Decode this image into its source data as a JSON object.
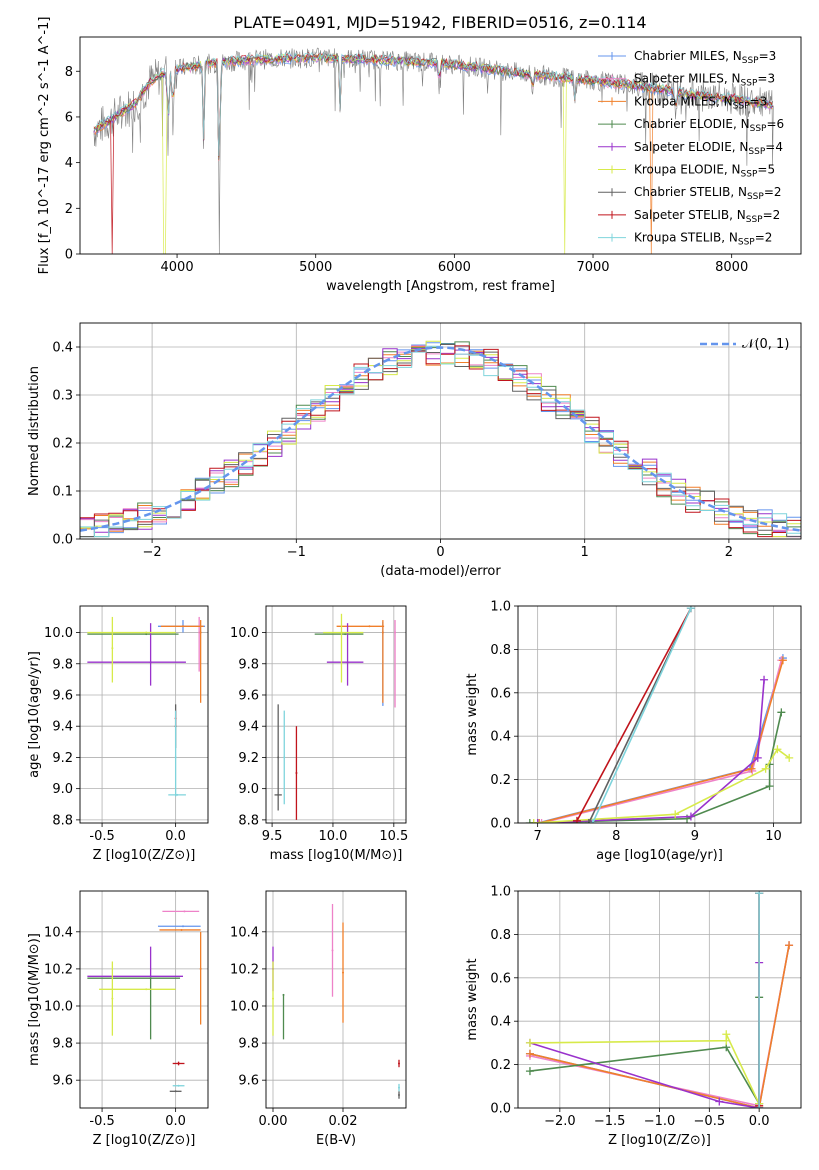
{
  "figure": {
    "title": "PLATE=0491, MJD=51942, FIBERID=0516, z=0.114"
  },
  "series_styles": [
    {
      "name": "Chabrier MILES",
      "nssp": "3",
      "color": "#6495ed"
    },
    {
      "name": "Salpeter MILES",
      "nssp": "3",
      "color": "#ee82c8"
    },
    {
      "name": "Kroupa MILES",
      "nssp": "3",
      "color": "#f07f2a"
    },
    {
      "name": "Chabrier ELODIE",
      "nssp": "6",
      "color": "#4f8a4f"
    },
    {
      "name": "Salpeter ELODIE",
      "nssp": "4",
      "color": "#9932cc"
    },
    {
      "name": "Kroupa ELODIE",
      "nssp": "5",
      "color": "#d7ea4a"
    },
    {
      "name": "Chabrier STELIB",
      "nssp": "2",
      "color": "#606060"
    },
    {
      "name": "Salpeter STELIB",
      "nssp": "2",
      "color": "#c0141c"
    },
    {
      "name": "Kroupa STELIB",
      "nssp": "2",
      "color": "#7fd4dc"
    }
  ],
  "chart_data": [
    {
      "id": "spectrum",
      "type": "line",
      "xlabel": "wavelength [Angstrom, rest frame]",
      "ylabel": "Flux [f_λ 10^-17 erg cm^-2 s^-1 A^-1]",
      "xlim": [
        3300,
        8500
      ],
      "ylim": [
        0,
        9.5
      ],
      "xticks": [
        4000,
        5000,
        6000,
        7000,
        8000
      ],
      "yticks": [
        0,
        2,
        4,
        6,
        8
      ],
      "grid": false,
      "legend": "upper-right",
      "observed_color": "#808080",
      "continuum_x": [
        3400,
        3600,
        3700,
        3800,
        3900,
        4000,
        4200,
        4500,
        5000,
        5500,
        6000,
        6500,
        7000,
        7500,
        7800,
        8000,
        8200,
        8300
      ],
      "continuum_y": [
        5.4,
        6.2,
        6.6,
        7.5,
        7.9,
        8.1,
        8.3,
        8.5,
        8.6,
        8.5,
        8.3,
        7.9,
        7.6,
        7.2,
        6.9,
        6.8,
        6.6,
        6.5
      ],
      "dips": [
        {
          "x": 4305,
          "y": 0.0
        },
        {
          "x": 4190,
          "y": 4.6
        },
        {
          "x": 3935,
          "y": 4.3
        },
        {
          "x": 3970,
          "y": 5.2
        },
        {
          "x": 5175,
          "y": 6.2
        },
        {
          "x": 5890,
          "y": 7.0
        },
        {
          "x": 6563,
          "y": 6.9
        },
        {
          "x": 6870,
          "y": 6.6
        },
        {
          "x": 7595,
          "y": 5.9
        }
      ],
      "model_cutoffs": [
        {
          "series": 7,
          "x": 3535
        },
        {
          "series": 5,
          "x": 3910
        },
        {
          "series": 5,
          "x": 6800
        },
        {
          "series": 2,
          "x": 7420
        }
      ]
    },
    {
      "id": "residuals",
      "type": "histogram",
      "xlabel": "(data-model)/error",
      "ylabel": "Normed distribution",
      "xlim": [
        -2.5,
        2.5
      ],
      "ylim": [
        0,
        0.45
      ],
      "xticks": [
        -2,
        -1,
        0,
        1,
        2
      ],
      "yticks": [
        0,
        0.1,
        0.2,
        0.3,
        0.4
      ],
      "grid": true,
      "bin_width": 0.1,
      "reference_curve": {
        "label": "𝒩(0, 1)",
        "color": "#6495ed"
      },
      "legend": "upper-right"
    },
    {
      "id": "age-vs-z",
      "type": "errorbar",
      "xlabel": "Z [log10(Z/Z⊙)]",
      "ylabel": "age [log10(age/yr)]",
      "xlim": [
        -0.65,
        0.22
      ],
      "ylim": [
        8.78,
        10.17
      ],
      "xticks": [
        -0.5,
        0.0
      ],
      "yticks": [
        8.8,
        9.0,
        9.2,
        9.4,
        9.6,
        9.8,
        10.0
      ],
      "grid": true,
      "points": [
        {
          "series": 0,
          "x": 0.05,
          "xerr": [
            0.17,
            0.15
          ],
          "y": 10.04,
          "yerr": [
            0.04,
            0.04
          ]
        },
        {
          "series": 1,
          "x": 0.16,
          "xerr": [
            0.0,
            0.0
          ],
          "y": 10.0,
          "yerr": [
            0.25,
            0.1
          ]
        },
        {
          "series": 2,
          "x": 0.17,
          "xerr": [
            0.0,
            0.0
          ],
          "y": 10.0,
          "yerr": [
            0.45,
            0.08
          ]
        },
        {
          "series": 2,
          "x": 0.05,
          "xerr": [
            0.15,
            0.14
          ],
          "y": 10.04,
          "yerr": [
            0.0,
            0.0
          ]
        },
        {
          "series": 3,
          "x": -0.2,
          "xerr": [
            0.4,
            0.22
          ],
          "y": 9.99,
          "yerr": [
            0.0,
            0.0
          ]
        },
        {
          "series": 4,
          "x": -0.17,
          "xerr": [
            0.43,
            0.24
          ],
          "y": 9.81,
          "yerr": [
            0.15,
            0.25
          ]
        },
        {
          "series": 5,
          "x": -0.43,
          "xerr": [
            0.0,
            0.0
          ],
          "y": 9.9,
          "yerr": [
            0.22,
            0.2
          ]
        },
        {
          "series": 5,
          "x": -0.2,
          "xerr": [
            0.4,
            0.2
          ],
          "y": 10.0,
          "yerr": [
            0.0,
            0.0
          ]
        },
        {
          "series": 6,
          "x": 0.0,
          "xerr": [
            0.0,
            0.0
          ],
          "y": 9.4,
          "yerr": [
            0.14,
            0.14
          ]
        },
        {
          "series": 7,
          "x": 0.0,
          "xerr": [
            0.0,
            0.0
          ],
          "y": 9.45,
          "yerr": [
            0.05,
            0.05
          ]
        },
        {
          "series": 8,
          "x": 0.01,
          "xerr": [
            0.06,
            0.06
          ],
          "y": 8.96,
          "yerr": [
            0.0,
            0.0
          ]
        },
        {
          "series": 8,
          "x": 0.0,
          "xerr": [
            0.0,
            0.0
          ],
          "y": 9.2,
          "yerr": [
            0.25,
            0.3
          ]
        }
      ]
    },
    {
      "id": "age-vs-mass",
      "type": "errorbar",
      "xlabel": "mass [log10(M/M⊙)]",
      "ylabel": "",
      "xlim": [
        9.45,
        10.6
      ],
      "ylim": [
        8.78,
        10.17
      ],
      "xticks": [
        9.5,
        10.0,
        10.5
      ],
      "yticks": [
        8.8,
        9.0,
        9.2,
        9.4,
        9.6,
        9.8,
        10.0
      ],
      "grid": true,
      "points": [
        {
          "series": 0,
          "x": 10.41,
          "xerr": [
            0.0,
            0.0
          ],
          "y": 10.0,
          "yerr": [
            0.47,
            0.07
          ]
        },
        {
          "series": 1,
          "x": 10.51,
          "xerr": [
            0.0,
            0.0
          ],
          "y": 10.0,
          "yerr": [
            0.48,
            0.08
          ]
        },
        {
          "series": 2,
          "x": 10.41,
          "xerr": [
            0.0,
            0.0
          ],
          "y": 10.0,
          "yerr": [
            0.45,
            0.08
          ]
        },
        {
          "series": 2,
          "x": 10.3,
          "xerr": [
            0.27,
            0.12
          ],
          "y": 10.04,
          "yerr": [
            0.0,
            0.0
          ]
        },
        {
          "series": 3,
          "x": 10.1,
          "xerr": [
            0.25,
            0.15
          ],
          "y": 9.99,
          "yerr": [
            0.0,
            0.0
          ]
        },
        {
          "series": 4,
          "x": 10.12,
          "xerr": [
            0.17,
            0.13
          ],
          "y": 9.81,
          "yerr": [
            0.15,
            0.25
          ]
        },
        {
          "series": 5,
          "x": 10.07,
          "xerr": [
            0.15,
            0.18
          ],
          "y": 10.0,
          "yerr": [
            0.32,
            0.12
          ]
        },
        {
          "series": 6,
          "x": 9.55,
          "xerr": [
            0.0,
            0.0
          ],
          "y": 9.2,
          "yerr": [
            0.34,
            0.34
          ]
        },
        {
          "series": 6,
          "x": 9.55,
          "xerr": [
            0.03,
            0.03
          ],
          "y": 8.96,
          "yerr": [
            0.0,
            0.0
          ]
        },
        {
          "series": 7,
          "x": 9.7,
          "xerr": [
            0.0,
            0.0
          ],
          "y": 9.1,
          "yerr": [
            0.3,
            0.3
          ]
        },
        {
          "series": 8,
          "x": 9.6,
          "xerr": [
            0.0,
            0.0
          ],
          "y": 9.2,
          "yerr": [
            0.3,
            0.3
          ]
        }
      ]
    },
    {
      "id": "mass-weight-vs-age",
      "type": "line",
      "xlabel": "age [log10(age/yr)]",
      "ylabel": "mass weight",
      "xlim": [
        6.75,
        10.35
      ],
      "ylim": [
        0,
        1.0
      ],
      "xticks": [
        7,
        8,
        9,
        10
      ],
      "yticks": [
        0.0,
        0.2,
        0.4,
        0.6,
        0.8,
        1.0
      ],
      "grid": true,
      "series": [
        {
          "series": 0,
          "x": [
            7.0,
            9.7,
            10.12
          ],
          "y": [
            0.0,
            0.25,
            0.76
          ]
        },
        {
          "series": 1,
          "x": [
            7.05,
            9.73,
            10.1
          ],
          "y": [
            0.0,
            0.24,
            0.75
          ]
        },
        {
          "series": 2,
          "x": [
            7.02,
            9.72,
            10.12
          ],
          "y": [
            0.0,
            0.25,
            0.75
          ]
        },
        {
          "series": 3,
          "x": [
            6.9,
            8.9,
            9.95,
            9.95,
            10.1
          ],
          "y": [
            0.0,
            0.02,
            0.17,
            0.27,
            0.51
          ]
        },
        {
          "series": 4,
          "x": [
            7.0,
            8.95,
            9.8,
            9.88
          ],
          "y": [
            0.0,
            0.03,
            0.3,
            0.66
          ]
        },
        {
          "series": 5,
          "x": [
            6.95,
            8.75,
            9.9,
            10.05,
            10.2
          ],
          "y": [
            0.0,
            0.04,
            0.25,
            0.34,
            0.3
          ]
        },
        {
          "series": 6,
          "x": [
            7.65,
            8.95
          ],
          "y": [
            0.0,
            0.99
          ]
        },
        {
          "series": 7,
          "x": [
            7.5,
            8.95
          ],
          "y": [
            0.01,
            0.99
          ]
        },
        {
          "series": 8,
          "x": [
            7.7,
            8.95
          ],
          "y": [
            0.0,
            0.99
          ]
        }
      ]
    },
    {
      "id": "mass-vs-z",
      "type": "errorbar",
      "xlabel": "Z [log10(Z/Z⊙)]",
      "ylabel": "mass [log10(M/M⊙)]",
      "xlim": [
        -0.65,
        0.22
      ],
      "ylim": [
        9.45,
        10.62
      ],
      "xticks": [
        -0.5,
        0.0
      ],
      "yticks": [
        9.6,
        9.8,
        10.0,
        10.2,
        10.4
      ],
      "grid": true,
      "points": [
        {
          "series": 0,
          "x": 0.05,
          "xerr": [
            0.17,
            0.12
          ],
          "y": 10.43,
          "yerr": [
            0.0,
            0.0
          ]
        },
        {
          "series": 1,
          "x": 0.06,
          "xerr": [
            0.15,
            0.1
          ],
          "y": 10.51,
          "yerr": [
            0.0,
            0.0
          ]
        },
        {
          "series": 2,
          "x": 0.17,
          "xerr": [
            0.0,
            0.0
          ],
          "y": 10.2,
          "yerr": [
            0.3,
            0.2
          ]
        },
        {
          "series": 2,
          "x": 0.04,
          "xerr": [
            0.15,
            0.13
          ],
          "y": 10.41,
          "yerr": [
            0.0,
            0.0
          ]
        },
        {
          "series": 3,
          "x": -0.17,
          "xerr": [
            0.43,
            0.2
          ],
          "y": 10.15,
          "yerr": [
            0.33,
            0.0
          ]
        },
        {
          "series": 4,
          "x": -0.17,
          "xerr": [
            0.43,
            0.22
          ],
          "y": 10.16,
          "yerr": [
            0.0,
            0.16
          ]
        },
        {
          "series": 5,
          "x": -0.43,
          "xerr": [
            0.0,
            0.0
          ],
          "y": 10.04,
          "yerr": [
            0.2,
            0.2
          ]
        },
        {
          "series": 5,
          "x": -0.2,
          "xerr": [
            0.32,
            0.2
          ],
          "y": 10.09,
          "yerr": [
            0.0,
            0.0
          ]
        },
        {
          "series": 6,
          "x": 0.0,
          "xerr": [
            0.04,
            0.04
          ],
          "y": 9.54,
          "yerr": [
            0.0,
            0.0
          ]
        },
        {
          "series": 7,
          "x": 0.02,
          "xerr": [
            0.04,
            0.04
          ],
          "y": 9.69,
          "yerr": [
            0.01,
            0.01
          ]
        },
        {
          "series": 8,
          "x": 0.02,
          "xerr": [
            0.04,
            0.04
          ],
          "y": 9.57,
          "yerr": [
            0.0,
            0.0
          ]
        }
      ]
    },
    {
      "id": "mass-vs-ebv",
      "type": "errorbar",
      "xlabel": "E(B-V)",
      "ylabel": "",
      "xlim": [
        -0.002,
        0.038
      ],
      "ylim": [
        9.45,
        10.62
      ],
      "xticks": [
        0.0,
        0.02
      ],
      "yticks": [
        9.6,
        9.8,
        10.0,
        10.2,
        10.4
      ],
      "grid": true,
      "points": [
        {
          "series": 1,
          "x": 0.017,
          "xerr": [
            0.0,
            0.0
          ],
          "y": 10.3,
          "yerr": [
            0.25,
            0.25
          ]
        },
        {
          "series": 2,
          "x": 0.02,
          "xerr": [
            0.0,
            0.0
          ],
          "y": 10.18,
          "yerr": [
            0.27,
            0.27
          ]
        },
        {
          "series": 3,
          "x": 0.003,
          "xerr": [
            0.0,
            0.0
          ],
          "y": 10.06,
          "yerr": [
            0.24,
            0.0
          ]
        },
        {
          "series": 4,
          "x": 0.0,
          "xerr": [
            0.0,
            0.0
          ],
          "y": 10.2,
          "yerr": [
            0.12,
            0.12
          ]
        },
        {
          "series": 5,
          "x": 0.0,
          "xerr": [
            0.0,
            0.0
          ],
          "y": 10.04,
          "yerr": [
            0.2,
            0.2
          ]
        },
        {
          "series": 6,
          "x": 0.036,
          "xerr": [
            0.0,
            0.0
          ],
          "y": 9.52,
          "yerr": [
            0.02,
            0.02
          ]
        },
        {
          "series": 7,
          "x": 0.036,
          "xerr": [
            0.0,
            0.0
          ],
          "y": 9.69,
          "yerr": [
            0.02,
            0.02
          ]
        },
        {
          "series": 8,
          "x": 0.036,
          "xerr": [
            0.0,
            0.0
          ],
          "y": 9.56,
          "yerr": [
            0.02,
            0.02
          ]
        }
      ]
    },
    {
      "id": "mass-weight-vs-z",
      "type": "line",
      "xlabel": "Z [log10(Z/Z⊙)]",
      "ylabel": "mass weight",
      "xlim": [
        -2.42,
        0.42
      ],
      "ylim": [
        0,
        1.0
      ],
      "xticks": [
        -2.0,
        -1.5,
        -1.0,
        -0.5,
        0.0
      ],
      "yticks": [
        0.0,
        0.2,
        0.4,
        0.6,
        0.8,
        1.0
      ],
      "grid": true,
      "series": [
        {
          "series": 0,
          "x": [
            -2.3,
            0.0,
            0.3
          ],
          "y": [
            0.25,
            0.0,
            0.75
          ]
        },
        {
          "series": 1,
          "x": [
            -2.3,
            0.0,
            0.3
          ],
          "y": [
            0.24,
            0.01,
            0.75
          ]
        },
        {
          "series": 2,
          "x": [
            -2.3,
            0.0,
            0.3
          ],
          "y": [
            0.25,
            0.0,
            0.75
          ]
        },
        {
          "series": 3,
          "x": [
            -2.3,
            -0.33,
            0.0,
            0.0,
            0.0
          ],
          "y": [
            0.17,
            0.28,
            0.02,
            0.51,
            0.0
          ]
        },
        {
          "series": 4,
          "x": [
            -2.3,
            -0.4,
            0.0,
            0.0
          ],
          "y": [
            0.3,
            0.03,
            0.0,
            0.67
          ]
        },
        {
          "series": 5,
          "x": [
            -2.3,
            -0.33,
            -0.33,
            0.0
          ],
          "y": [
            0.3,
            0.31,
            0.34,
            0.02
          ]
        },
        {
          "series": 6,
          "x": [
            0.0,
            0.0
          ],
          "y": [
            0.0,
            0.99
          ]
        },
        {
          "series": 7,
          "x": [
            0.0,
            0.0
          ],
          "y": [
            0.01,
            0.99
          ]
        },
        {
          "series": 8,
          "x": [
            0.0,
            0.0
          ],
          "y": [
            0.0,
            0.99
          ]
        }
      ]
    }
  ]
}
